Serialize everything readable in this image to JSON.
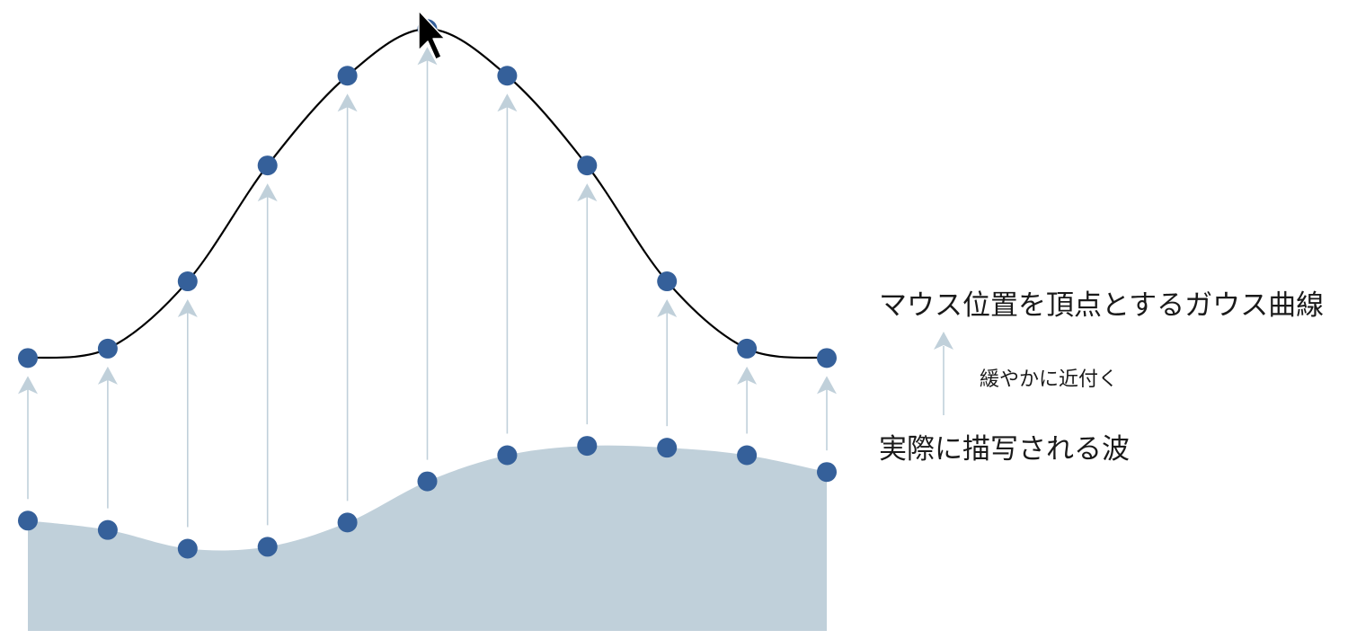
{
  "labels": {
    "gaussian": "マウス位置を頂点とするガウス曲線",
    "approach": "緩やかに近付く",
    "wave": "実際に描写される波"
  },
  "colors": {
    "dot": "#35609a",
    "wave_fill": "#c0d0da",
    "arrow": "#c0d0da",
    "curve": "#000000"
  },
  "points": {
    "count": 11,
    "gaussian": [
      1.46,
      1.51,
      1.87,
      2.49,
      2.97,
      3.22,
      2.97,
      2.49,
      1.87,
      1.51,
      1.46
    ],
    "wave": [
      0.59,
      0.54,
      0.44,
      0.45,
      0.58,
      0.8,
      0.94,
      0.99,
      0.98,
      0.94,
      0.85
    ]
  },
  "cursor": {
    "icon": "mouse-pointer-icon"
  }
}
